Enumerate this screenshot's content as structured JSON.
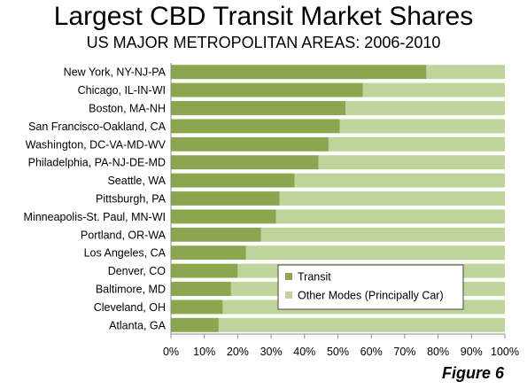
{
  "chart_data": {
    "type": "bar",
    "orientation": "horizontal",
    "stacked": true,
    "title": "Largest CBD Transit Market Shares",
    "subtitle": "US MAJOR METROPOLITAN AREAS: 2006-2010",
    "categories": [
      "New York, NY-NJ-PA",
      "Chicago, IL-IN-WI",
      "Boston, MA-NH",
      "San Francisco-Oakland, CA",
      "Washington, DC-VA-MD-WV",
      "Philadelphia, PA-NJ-DE-MD",
      "Seattle, WA",
      "Pittsburgh, PA",
      "Minneapolis-St. Paul, MN-WI",
      "Portland, OR-WA",
      "Los Angeles, CA",
      "Denver, CO",
      "Baltimore, MD",
      "Cleveland, OH",
      "Atlanta, GA"
    ],
    "series": [
      {
        "name": "Transit",
        "color": "#8ba64e",
        "values": [
          76.5,
          57.5,
          52.3,
          50.6,
          47.2,
          44.2,
          37.0,
          32.5,
          31.5,
          27.0,
          22.5,
          20.0,
          18.0,
          15.5,
          14.3
        ]
      },
      {
        "name": "Other Modes (Principally Car)",
        "color": "#bfd49a",
        "values": [
          23.5,
          42.5,
          47.7,
          49.4,
          52.8,
          55.8,
          63.0,
          67.5,
          68.5,
          73.0,
          77.5,
          80.0,
          82.0,
          84.5,
          85.7
        ]
      }
    ],
    "xlim": [
      0,
      100
    ],
    "xticks": [
      "0%",
      "10%",
      "20%",
      "30%",
      "40%",
      "50%",
      "60%",
      "70%",
      "80%",
      "90%",
      "100%"
    ],
    "grid": false,
    "legend_position": "lower-right-inside"
  },
  "figure_label": "Figure 6"
}
